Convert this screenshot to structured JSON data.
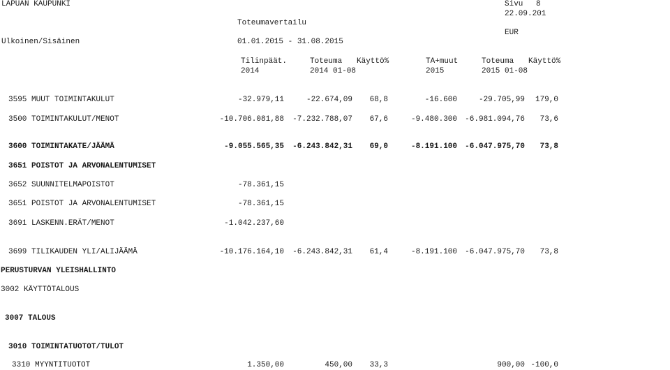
{
  "header": {
    "org": "LAPUAN KAUPUNKI",
    "page_label": "Sivu",
    "page_num": "8",
    "report_title": "Toteumavertailu",
    "date": "22.09.201",
    "currency": "EUR",
    "scope": "Ulkoinen/Sisäinen",
    "period": "01.01.2015 - 31.08.2015"
  },
  "columns": [
    {
      "line1": "Tilinpäät.",
      "line2": "2014"
    },
    {
      "line1": "Toteuma",
      "line2": "2014 01-08"
    },
    {
      "line1": "Käyttö%",
      "line2": ""
    },
    {
      "line1": "TA+muut",
      "line2": "2015"
    },
    {
      "line1": "Toteuma",
      "line2": "2015 01-08"
    },
    {
      "line1": "Käyttö%",
      "line2": ""
    }
  ],
  "rows": [
    {
      "label": "3595 MUUT TOIMINTAKULUT",
      "v": [
        "-32.979,11",
        "-22.674,09",
        "68,8",
        "-16.600",
        "-29.705,99",
        "179,0"
      ]
    },
    {
      "label": "3500 TOIMINTAKULUT/MENOT",
      "v": [
        "-10.706.081,88",
        "-7.232.788,07",
        "67,6",
        "-9.480.300",
        "-6.981.094,76",
        "73,6"
      ]
    },
    {
      "label": "3600 TOIMINTAKATE/JÄÄMÄ",
      "v": [
        "-9.055.565,35",
        "-6.243.842,31",
        "69,0",
        "-8.191.100",
        "-6.047.975,70",
        "73,8"
      ]
    },
    {
      "label": "3651 POISTOT JA ARVONALENTUMISET",
      "v": [
        "",
        "",
        "",
        "",
        "",
        ""
      ]
    },
    {
      "label": "3652 SUUNNITELMAPOISTOT",
      "v": [
        "-78.361,15",
        "",
        "",
        "",
        "",
        ""
      ]
    },
    {
      "label": "3651 POISTOT JA ARVONALENTUMISET",
      "v": [
        "-78.361,15",
        "",
        "",
        "",
        "",
        ""
      ]
    },
    {
      "label": "3691 LASKENN.ERÄT/MENOT",
      "v": [
        "-1.042.237,60",
        "",
        "",
        "",
        "",
        ""
      ]
    },
    {
      "label": "3699 TILIKAUDEN YLI/ALIJÄÄMÄ",
      "v": [
        "-10.176.164,10",
        "-6.243.842,31",
        "61,4",
        "-8.191.100",
        "-6.047.975,70",
        "73,8"
      ]
    },
    {
      "label": "PERUSTURVAN YLEISHALLINTO",
      "v": [
        "",
        "",
        "",
        "",
        "",
        ""
      ]
    },
    {
      "label": "3002 KÄYTTÖTALOUS",
      "v": [
        "",
        "",
        "",
        "",
        "",
        ""
      ]
    },
    {
      "label": "3007 TALOUS",
      "v": [
        "",
        "",
        "",
        "",
        "",
        ""
      ]
    },
    {
      "label": "3010 TOIMINTATUOTOT/TULOT",
      "v": [
        "",
        "",
        "",
        "",
        "",
        ""
      ]
    },
    {
      "label": "3310 MYYNTITUOTOT",
      "v": [
        "1.350,00",
        "450,00",
        "33,3",
        "",
        "900,00",
        "-100,0"
      ]
    }
  ]
}
